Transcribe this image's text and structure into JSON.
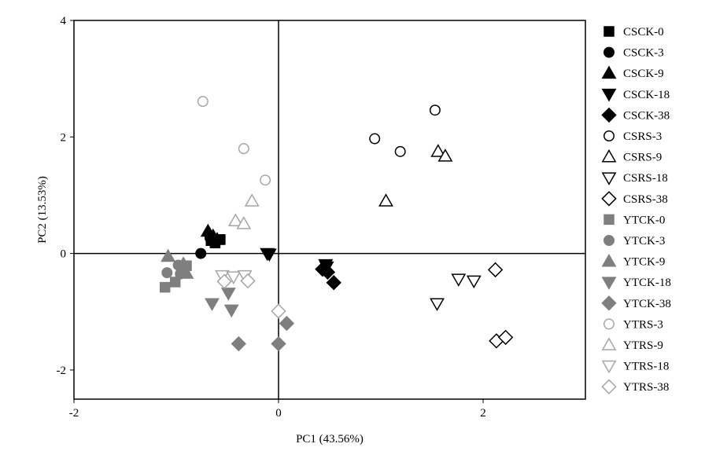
{
  "chart_data": {
    "type": "scatter",
    "xlabel": "PC1 (43.56%)",
    "ylabel": "PC2 (13.53%)",
    "xlim": [
      -2,
      3
    ],
    "ylim": [
      -2.5,
      4
    ],
    "xticks": [
      -2,
      0,
      2
    ],
    "yticks": [
      -2,
      0,
      2,
      4
    ],
    "xtick_labels": [
      "-2",
      "0",
      "2"
    ],
    "ytick_labels": [
      "-2",
      "0",
      "2",
      "4"
    ],
    "zero_lines": true,
    "grid": false,
    "legend_position": "right",
    "colors": {
      "black": "#000000",
      "gray": "#7f7f7f",
      "light_gray": "#a6a6a6"
    },
    "series": [
      {
        "name": "CSCK-0",
        "marker": "square",
        "fill": "filled",
        "color": "#000000",
        "points": [
          [
            -0.66,
            0.22
          ],
          [
            -0.57,
            0.24
          ],
          [
            -0.62,
            0.18
          ]
        ]
      },
      {
        "name": "CSCK-3",
        "marker": "circle",
        "fill": "filled",
        "color": "#000000",
        "points": [
          [
            -0.76,
            0.0
          ],
          [
            -0.67,
            0.27
          ]
        ]
      },
      {
        "name": "CSCK-9",
        "marker": "triangle-up",
        "fill": "filled",
        "color": "#000000",
        "points": [
          [
            -0.69,
            0.38
          ],
          [
            -0.64,
            0.3
          ],
          [
            -0.6,
            0.24
          ]
        ]
      },
      {
        "name": "CSCK-18",
        "marker": "triangle-down",
        "fill": "filled",
        "color": "#000000",
        "points": [
          [
            -0.11,
            0.0
          ],
          [
            -0.09,
            -0.01
          ],
          [
            0.46,
            -0.19
          ],
          [
            0.47,
            -0.23
          ]
        ]
      },
      {
        "name": "CSCK-38",
        "marker": "diamond",
        "fill": "filled",
        "color": "#000000",
        "points": [
          [
            0.43,
            -0.27
          ],
          [
            0.48,
            -0.32
          ],
          [
            0.54,
            -0.5
          ]
        ]
      },
      {
        "name": "CSRS-3",
        "marker": "circle",
        "fill": "open",
        "color": "#000000",
        "points": [
          [
            0.94,
            1.97
          ],
          [
            1.19,
            1.75
          ],
          [
            1.53,
            2.46
          ]
        ]
      },
      {
        "name": "CSRS-9",
        "marker": "triangle-up",
        "fill": "open",
        "color": "#000000",
        "points": [
          [
            1.05,
            0.9
          ],
          [
            1.56,
            1.75
          ],
          [
            1.63,
            1.67
          ]
        ]
      },
      {
        "name": "CSRS-18",
        "marker": "triangle-down",
        "fill": "open",
        "color": "#000000",
        "points": [
          [
            1.55,
            -0.86
          ],
          [
            1.76,
            -0.44
          ],
          [
            1.91,
            -0.47
          ]
        ]
      },
      {
        "name": "CSRS-38",
        "marker": "diamond",
        "fill": "open",
        "color": "#000000",
        "points": [
          [
            2.12,
            -0.28
          ],
          [
            2.13,
            -1.5
          ],
          [
            2.22,
            -1.44
          ]
        ]
      },
      {
        "name": "YTCK-0",
        "marker": "square",
        "fill": "filled",
        "color": "#7f7f7f",
        "points": [
          [
            -1.11,
            -0.58
          ],
          [
            -1.01,
            -0.49
          ],
          [
            -0.9,
            -0.21
          ]
        ]
      },
      {
        "name": "YTCK-3",
        "marker": "circle",
        "fill": "filled",
        "color": "#7f7f7f",
        "points": [
          [
            -1.09,
            -0.33
          ],
          [
            -0.98,
            -0.2
          ],
          [
            -0.96,
            -0.35
          ]
        ]
      },
      {
        "name": "YTCK-9",
        "marker": "triangle-up",
        "fill": "filled",
        "color": "#7f7f7f",
        "points": [
          [
            -1.08,
            -0.05
          ],
          [
            -0.93,
            -0.18
          ],
          [
            -0.9,
            -0.34
          ]
        ]
      },
      {
        "name": "YTCK-18",
        "marker": "triangle-down",
        "fill": "filled",
        "color": "#7f7f7f",
        "points": [
          [
            -0.65,
            -0.86
          ],
          [
            -0.49,
            -0.68
          ],
          [
            -0.46,
            -0.97
          ]
        ]
      },
      {
        "name": "YTCK-38",
        "marker": "diamond",
        "fill": "filled",
        "color": "#7f7f7f",
        "points": [
          [
            -0.39,
            -1.55
          ],
          [
            0.0,
            -1.55
          ],
          [
            0.08,
            -1.2
          ]
        ]
      },
      {
        "name": "YTRS-3",
        "marker": "circle",
        "fill": "open",
        "color": "#a6a6a6",
        "points": [
          [
            -0.74,
            2.61
          ],
          [
            -0.34,
            1.8
          ],
          [
            -0.13,
            1.26
          ]
        ]
      },
      {
        "name": "YTRS-9",
        "marker": "triangle-up",
        "fill": "open",
        "color": "#a6a6a6",
        "points": [
          [
            -0.42,
            0.56
          ],
          [
            -0.34,
            0.51
          ],
          [
            -0.26,
            0.9
          ]
        ]
      },
      {
        "name": "YTRS-18",
        "marker": "triangle-down",
        "fill": "open",
        "color": "#a6a6a6",
        "points": [
          [
            -0.55,
            -0.38
          ],
          [
            -0.44,
            -0.4
          ],
          [
            -0.33,
            -0.38
          ]
        ]
      },
      {
        "name": "YTRS-38",
        "marker": "diamond",
        "fill": "open",
        "color": "#a6a6a6",
        "points": [
          [
            -0.53,
            -0.48
          ],
          [
            -0.3,
            -0.47
          ],
          [
            0.0,
            -0.99
          ]
        ]
      }
    ]
  }
}
